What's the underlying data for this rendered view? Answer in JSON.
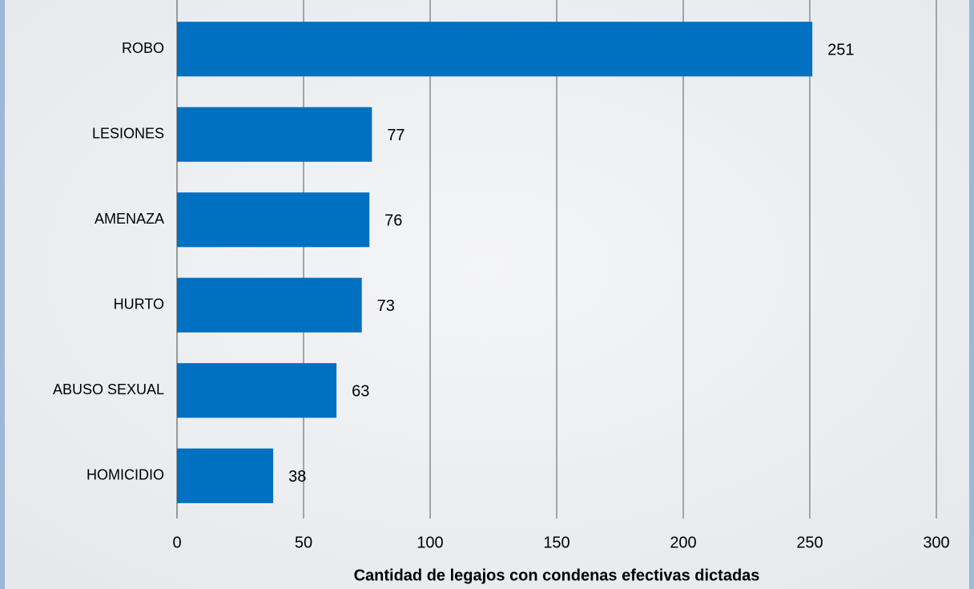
{
  "chart_data": {
    "type": "bar",
    "orientation": "horizontal",
    "x_label": "Cantidad de legajos con condenas efectivas dictadas",
    "categories": [
      "ROBO",
      "LESIONES",
      "AMENAZA",
      "HURTO",
      "ABUSO SEXUAL",
      "HOMICIDIO"
    ],
    "values": [
      251,
      77,
      76,
      73,
      63,
      38
    ],
    "color": "#0070c0",
    "xlim": [
      0,
      300
    ],
    "xticks": [
      0,
      50,
      100,
      150,
      200,
      250,
      300
    ],
    "grid": true
  }
}
